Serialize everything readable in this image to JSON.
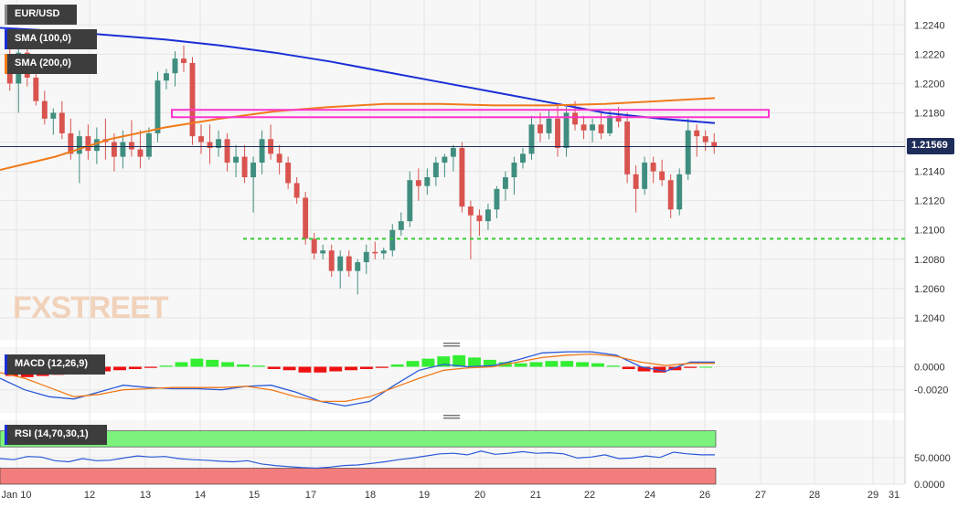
{
  "symbol": "EUR/USD",
  "price_label": "1.21569",
  "watermark": "FXSTREET",
  "indicators": {
    "sma100": "SMA (100,0)",
    "sma200": "SMA (200,0)",
    "macd": "MACD (12,26,9)",
    "rsi": "RSI (14,70,30,1)"
  },
  "colors": {
    "up": "#3f8e7f",
    "down": "#d9534f",
    "sma100": "#1a2fd6",
    "sma200": "#f07a1a",
    "resistance": "#ff33cc",
    "support": "#33cc33",
    "price_line": "#1f2d5a",
    "macd_line": "#2a5ad8",
    "signal_line": "#f07a1a",
    "hist_pos": "#33ee33",
    "hist_neg": "#ee1111",
    "rsi_line": "#2a5ad8",
    "rsi_overbought": "#7df27d",
    "rsi_oversold": "#f27d7d"
  },
  "chart_data": [
    {
      "type": "candlestick",
      "title": "EUR/USD",
      "x_ticks": [
        "Jan 10",
        "12",
        "13",
        "14",
        "15",
        "17",
        "18",
        "19",
        "20",
        "21",
        "22",
        "24",
        "26",
        "27",
        "28",
        "29",
        "31"
      ],
      "y_ticks": [
        "1.2240",
        "1.2220",
        "1.2200",
        "1.2180",
        "1.2160",
        "1.2140",
        "1.2120",
        "1.2100",
        "1.2080",
        "1.2060",
        "1.2040"
      ],
      "ylim": [
        1.2025,
        1.2257
      ],
      "grid": true,
      "last_price": 1.21569,
      "candles": [
        [
          1.2218,
          1.2235,
          1.2195,
          1.22
        ],
        [
          1.22,
          1.2228,
          1.218,
          1.2221
        ],
        [
          1.2221,
          1.2232,
          1.2198,
          1.2204
        ],
        [
          1.2204,
          1.221,
          1.2185,
          1.2188
        ],
        [
          1.2188,
          1.2195,
          1.2172,
          1.2176
        ],
        [
          1.2176,
          1.2183,
          1.2165,
          1.218
        ],
        [
          1.218,
          1.2188,
          1.2162,
          1.2166
        ],
        [
          1.2166,
          1.2176,
          1.2148,
          1.2152
        ],
        [
          1.2152,
          1.2168,
          1.2132,
          1.2164
        ],
        [
          1.2164,
          1.2172,
          1.2148,
          1.2154
        ],
        [
          1.2154,
          1.217,
          1.2145,
          1.2162
        ],
        [
          1.2162,
          1.2176,
          1.2148,
          1.216
        ],
        [
          1.216,
          1.2166,
          1.214,
          1.215
        ],
        [
          1.215,
          1.2168,
          1.2142,
          1.216
        ],
        [
          1.216,
          1.2175,
          1.215,
          1.2155
        ],
        [
          1.2155,
          1.2168,
          1.2142,
          1.215
        ],
        [
          1.215,
          1.217,
          1.2148,
          1.2166
        ],
        [
          1.2166,
          1.2208,
          1.216,
          1.2202
        ],
        [
          1.2202,
          1.221,
          1.2196,
          1.2207
        ],
        [
          1.2207,
          1.2222,
          1.2198,
          1.2217
        ],
        [
          1.2217,
          1.2226,
          1.2208,
          1.2214
        ],
        [
          1.2214,
          1.2218,
          1.2158,
          1.2164
        ],
        [
          1.2164,
          1.2172,
          1.2152,
          1.216
        ],
        [
          1.216,
          1.2172,
          1.2145,
          1.2156
        ],
        [
          1.2156,
          1.2168,
          1.215,
          1.2162
        ],
        [
          1.2162,
          1.2166,
          1.214,
          1.2146
        ],
        [
          1.2146,
          1.2158,
          1.2136,
          1.215
        ],
        [
          1.215,
          1.2158,
          1.2132,
          1.2136
        ],
        [
          1.2136,
          1.215,
          1.2112,
          1.2146
        ],
        [
          1.2146,
          1.2168,
          1.2138,
          1.2162
        ],
        [
          1.2162,
          1.2172,
          1.2148,
          1.2152
        ],
        [
          1.2152,
          1.2158,
          1.2138,
          1.2146
        ],
        [
          1.2146,
          1.215,
          1.2128,
          1.2132
        ],
        [
          1.2132,
          1.2136,
          1.2118,
          1.2122
        ],
        [
          1.2122,
          1.2126,
          1.209,
          1.2094
        ],
        [
          1.2094,
          1.2098,
          1.208,
          1.2084
        ],
        [
          1.2084,
          1.209,
          1.208,
          1.2086
        ],
        [
          1.2086,
          1.209,
          1.2068,
          1.2072
        ],
        [
          1.2072,
          1.2086,
          1.206,
          1.2082
        ],
        [
          1.2082,
          1.2086,
          1.2068,
          1.2072
        ],
        [
          1.2072,
          1.208,
          1.2056,
          1.2078
        ],
        [
          1.2078,
          1.209,
          1.207,
          1.2085
        ],
        [
          1.2085,
          1.2092,
          1.208,
          1.2084
        ],
        [
          1.2084,
          1.2088,
          1.208,
          1.2086
        ],
        [
          1.2086,
          1.2104,
          1.2082,
          1.21
        ],
        [
          1.21,
          1.2112,
          1.2096,
          1.2106
        ],
        [
          1.2106,
          1.214,
          1.2102,
          1.2134
        ],
        [
          1.2134,
          1.2142,
          1.212,
          1.213
        ],
        [
          1.213,
          1.2142,
          1.2124,
          1.2136
        ],
        [
          1.2136,
          1.215,
          1.213,
          1.2146
        ],
        [
          1.2146,
          1.2152,
          1.2136,
          1.215
        ],
        [
          1.215,
          1.2158,
          1.214,
          1.2156
        ],
        [
          1.2156,
          1.216,
          1.2112,
          1.2116
        ],
        [
          1.2116,
          1.212,
          1.208,
          1.211
        ],
        [
          1.211,
          1.2114,
          1.2096,
          1.2106
        ],
        [
          1.2106,
          1.2118,
          1.21,
          1.2114
        ],
        [
          1.2114,
          1.213,
          1.2108,
          1.2128
        ],
        [
          1.2128,
          1.214,
          1.212,
          1.2136
        ],
        [
          1.2136,
          1.215,
          1.2124,
          1.2146
        ],
        [
          1.2146,
          1.2156,
          1.2142,
          1.2152
        ],
        [
          1.2152,
          1.2178,
          1.2148,
          1.2172
        ],
        [
          1.2172,
          1.218,
          1.216,
          1.2166
        ],
        [
          1.2166,
          1.2182,
          1.2162,
          1.2176
        ],
        [
          1.2176,
          1.2186,
          1.215,
          1.2156
        ],
        [
          1.2156,
          1.2184,
          1.215,
          1.218
        ],
        [
          1.218,
          1.2188,
          1.2168,
          1.2172
        ],
        [
          1.2172,
          1.2178,
          1.2162,
          1.2168
        ],
        [
          1.2168,
          1.2176,
          1.216,
          1.2172
        ],
        [
          1.2172,
          1.218,
          1.2162,
          1.2166
        ],
        [
          1.2166,
          1.2182,
          1.2164,
          1.2178
        ],
        [
          1.2178,
          1.2184,
          1.217,
          1.2174
        ],
        [
          1.2174,
          1.218,
          1.2132,
          1.2138
        ],
        [
          1.2138,
          1.2144,
          1.2112,
          1.2128
        ],
        [
          1.2128,
          1.215,
          1.2124,
          1.2146
        ],
        [
          1.2146,
          1.215,
          1.2132,
          1.214
        ],
        [
          1.214,
          1.2148,
          1.213,
          1.2134
        ],
        [
          1.2134,
          1.2138,
          1.2108,
          1.2114
        ],
        [
          1.2114,
          1.2142,
          1.211,
          1.2138
        ],
        [
          1.2138,
          1.2176,
          1.2134,
          1.2168
        ],
        [
          1.2168,
          1.2172,
          1.215,
          1.2164
        ],
        [
          1.2164,
          1.2168,
          1.2154,
          1.216
        ],
        [
          1.216,
          1.2166,
          1.2152,
          1.2157
        ]
      ],
      "sma100": [
        1.2238,
        1.2236,
        1.2233,
        1.223,
        1.2226,
        1.2221,
        1.2215,
        1.2208,
        1.2201,
        1.2194,
        1.2187,
        1.218,
        1.2176,
        1.2173
      ],
      "sma200": [
        1.2141,
        1.215,
        1.2162,
        1.217,
        1.2176,
        1.2181,
        1.2184,
        1.2186,
        1.2186,
        1.2185,
        1.2185,
        1.2186,
        1.2188,
        1.219
      ],
      "resistance_zone": [
        1.2177,
        1.2182
      ],
      "support_level": 1.2094
    },
    {
      "type": "bar+line",
      "title": "MACD (12,26,9)",
      "y_ticks": [
        "0.0000",
        "-0.0020"
      ],
      "ylim": [
        -0.004,
        0.0017
      ],
      "histogram": [
        -0.0008,
        -0.0009,
        -0.0008,
        -0.0007,
        -0.0006,
        -0.0005,
        -0.0004,
        -0.0003,
        -0.0002,
        -0.0001,
        0.0001,
        0.0004,
        0.0007,
        0.0006,
        0.0004,
        0.0002,
        0.0001,
        -0.0002,
        -0.0003,
        -0.0005,
        -0.0005,
        -0.0004,
        -0.0003,
        -0.0002,
        -0.0001,
        0.0002,
        0.0005,
        0.0007,
        0.0009,
        0.001,
        0.0008,
        0.0006,
        0.0004,
        0.0003,
        0.0004,
        0.0005,
        0.0005,
        0.0004,
        0.0003,
        0.0001,
        -0.0002,
        -0.0004,
        -0.0005,
        -0.0003,
        -0.0001,
        0.0
      ],
      "macd": [
        -0.001,
        -0.002,
        -0.0026,
        -0.0028,
        -0.0022,
        -0.0016,
        -0.0018,
        -0.0019,
        -0.0019,
        -0.002,
        -0.0017,
        -0.0016,
        -0.0022,
        -0.003,
        -0.0034,
        -0.003,
        -0.0016,
        -0.0003,
        0.0002,
        0.0,
        0.0001,
        0.0006,
        0.0012,
        0.0013,
        0.0013,
        0.001,
        0.0,
        -0.0004,
        0.0004,
        0.0004
      ],
      "signal": [
        -0.0005,
        -0.001,
        -0.0018,
        -0.0026,
        -0.0024,
        -0.002,
        -0.0019,
        -0.0018,
        -0.0018,
        -0.0018,
        -0.0017,
        -0.002,
        -0.0026,
        -0.003,
        -0.003,
        -0.0026,
        -0.0018,
        -0.001,
        -0.0003,
        -0.0001,
        0.0,
        0.0004,
        0.0008,
        0.001,
        0.0011,
        0.0009,
        0.0004,
        0.0001,
        0.0003,
        0.0003
      ]
    },
    {
      "type": "line",
      "title": "RSI (14,70,30,1)",
      "y_ticks": [
        "50.0000",
        "0.0000"
      ],
      "ylim": [
        0,
        120
      ],
      "overbought": 70,
      "oversold": 30,
      "rsi": [
        48,
        46,
        52,
        51,
        44,
        42,
        48,
        44,
        45,
        49,
        53,
        51,
        52,
        48,
        46,
        45,
        43,
        42,
        44,
        38,
        35,
        33,
        31,
        30,
        32,
        35,
        36,
        39,
        42,
        46,
        49,
        53,
        57,
        58,
        55,
        62,
        56,
        58,
        61,
        58,
        59,
        57,
        49,
        51,
        55,
        48,
        49,
        53,
        50,
        60,
        57,
        55,
        55
      ]
    }
  ],
  "x_axis_labels": [
    "Jan 10",
    "12",
    "13",
    "14",
    "15",
    "17",
    "18",
    "19",
    "20",
    "21",
    "22",
    "24",
    "26",
    "27",
    "28",
    "29",
    "31"
  ]
}
